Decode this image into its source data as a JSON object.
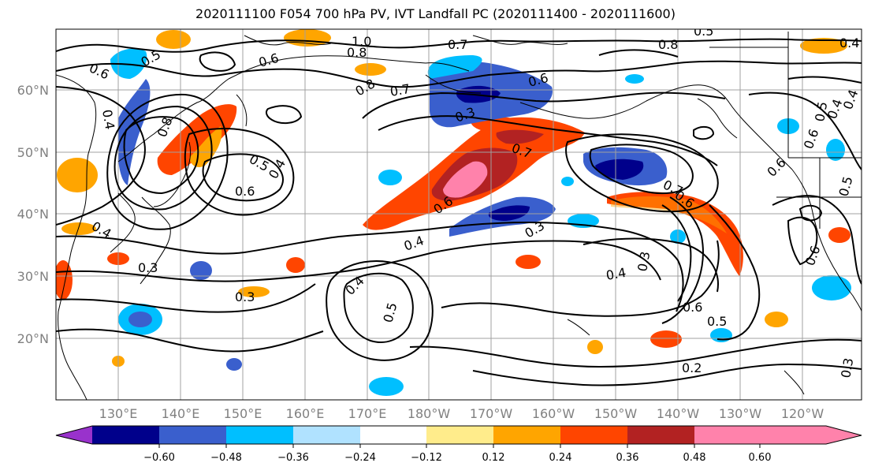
{
  "title": "2020111100 F054 700 hPa PV, IVT Landfall PC (2020111400 - 2020111600)",
  "lat_labels": [
    "60°N",
    "50°N",
    "40°N",
    "30°N",
    "20°N"
  ],
  "lon_labels": [
    "130°E",
    "140°E",
    "150°E",
    "160°E",
    "170°E",
    "180°W",
    "170°W",
    "160°W",
    "150°W",
    "140°W",
    "130°W",
    "120°W"
  ],
  "contour_labels": [
    "0.6",
    "0.5",
    "0.6",
    "1.0",
    "0.8",
    "0.7",
    "0.7",
    "0.6",
    "0.8",
    "0.4",
    "0.8",
    "0.3",
    "0.4",
    "0.8",
    "0.7",
    "0.6",
    "0.5",
    "0.5",
    "0.6",
    "0.4",
    "0.6",
    "0.7",
    "0.6",
    "0.4",
    "0.6",
    "0.4",
    "0.3",
    "0.4",
    "0.3",
    "0.3",
    "0.3",
    "0.4",
    "0.5",
    "0.6",
    "0.5",
    "0.2",
    "0.3",
    "0.5",
    "0.4",
    "0.6",
    "0.5",
    "0.4"
  ],
  "colorbar": {
    "colors": [
      "#9932cc",
      "#00008b",
      "#3a5fcd",
      "#00bfff",
      "#b0e2ff",
      "#ffffff",
      "#ffec8b",
      "#ffa500",
      "#ff4500",
      "#b22222",
      "#ff82ab"
    ],
    "tick_labels": [
      "−0.60",
      "−0.48",
      "−0.36",
      "−0.24",
      "−0.12",
      "0.12",
      "0.24",
      "0.36",
      "0.48",
      "0.60"
    ]
  },
  "colors": {
    "gridline": "#a0a0a0",
    "contour": "#000000",
    "coast": "#000000"
  }
}
